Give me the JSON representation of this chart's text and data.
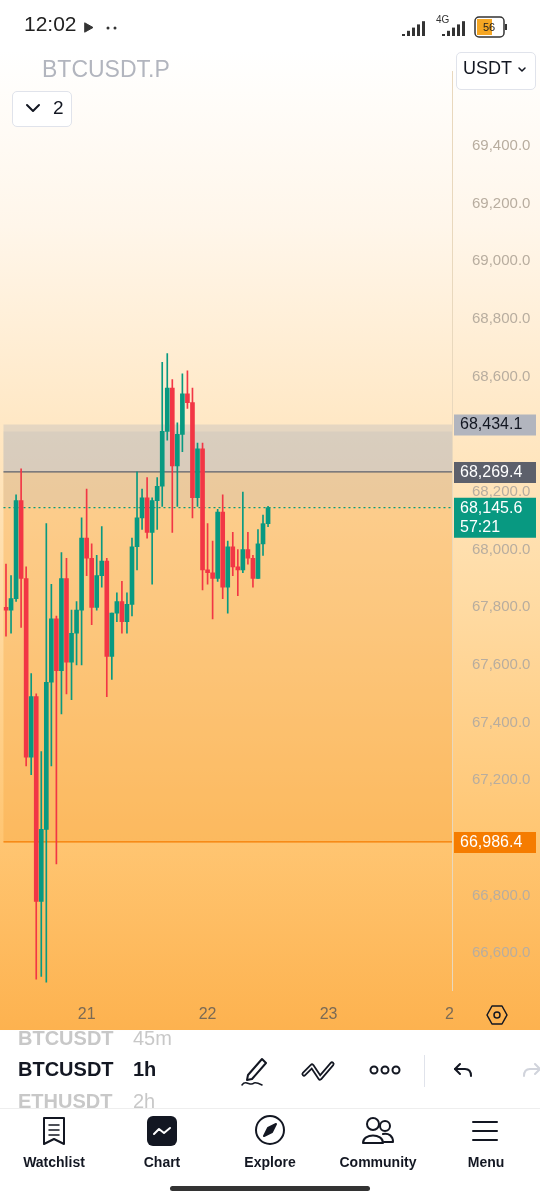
{
  "chart_data": {
    "type": "candlestick",
    "title": "BTCUSDT.P",
    "categories": [
      null,
      null,
      null,
      null,
      null,
      null,
      null,
      null,
      null,
      null,
      null,
      null,
      null,
      null,
      null,
      null,
      "21",
      null,
      null,
      null,
      null,
      null,
      null,
      null,
      null,
      null,
      null,
      null,
      null,
      null,
      null,
      null,
      null,
      null,
      null,
      null,
      null,
      null,
      null,
      null,
      "22",
      null,
      null,
      null,
      null,
      null,
      null,
      null,
      null,
      null,
      null,
      null,
      null,
      null,
      null,
      null,
      null,
      null,
      null,
      null,
      null,
      null,
      null,
      null,
      "23",
      null,
      null,
      null,
      null,
      null,
      null,
      null,
      null,
      null,
      null,
      null,
      null,
      null,
      null,
      null,
      null,
      null,
      null,
      null,
      null,
      null,
      null,
      null,
      "2"
    ],
    "ohlc": [
      [
        67800,
        67950,
        67700,
        67790
      ],
      [
        67790,
        67910,
        67710,
        67830
      ],
      [
        67830,
        68190,
        67820,
        68170
      ],
      [
        68170,
        68280,
        67730,
        67900
      ],
      [
        67900,
        67940,
        67250,
        67280
      ],
      [
        67280,
        67570,
        67220,
        67490
      ],
      [
        67490,
        67500,
        66510,
        66780
      ],
      [
        66780,
        67300,
        66520,
        67030
      ],
      [
        67030,
        68090,
        66500,
        67540
      ],
      [
        67540,
        67880,
        67250,
        67760
      ],
      [
        67760,
        67770,
        66910,
        67580
      ],
      [
        67580,
        67990,
        67430,
        67900
      ],
      [
        67900,
        67970,
        67500,
        67610
      ],
      [
        67610,
        67790,
        67480,
        67710
      ],
      [
        67710,
        67820,
        67600,
        67790
      ],
      [
        67790,
        68110,
        67600,
        68040
      ],
      [
        68040,
        68210,
        67910,
        67970
      ],
      [
        67970,
        68020,
        67740,
        67800
      ],
      [
        67800,
        67980,
        67790,
        67910
      ],
      [
        67910,
        68080,
        67870,
        67960
      ],
      [
        67960,
        67970,
        67490,
        67630
      ],
      [
        67630,
        67780,
        67550,
        67780
      ],
      [
        67780,
        67850,
        67750,
        67820
      ],
      [
        67820,
        67890,
        67710,
        67750
      ],
      [
        67750,
        67850,
        67710,
        67810
      ],
      [
        67810,
        68040,
        67770,
        68010
      ],
      [
        68010,
        68270,
        67930,
        68110
      ],
      [
        68110,
        68210,
        68070,
        68180
      ],
      [
        68180,
        68250,
        68040,
        68060
      ],
      [
        68060,
        68180,
        67880,
        68170
      ],
      [
        68170,
        68250,
        68070,
        68220
      ],
      [
        68220,
        68650,
        68150,
        68410
      ],
      [
        68410,
        68680,
        68380,
        68560
      ],
      [
        68560,
        68590,
        68060,
        68290
      ],
      [
        68290,
        68440,
        68150,
        68400
      ],
      [
        68400,
        68610,
        68340,
        68540
      ],
      [
        68540,
        68620,
        68490,
        68510
      ],
      [
        68510,
        68560,
        68110,
        68180
      ],
      [
        68180,
        68370,
        68150,
        68350
      ],
      [
        68350,
        68370,
        67860,
        67930
      ],
      [
        67930,
        68090,
        67880,
        67920
      ],
      [
        67920,
        68030,
        67760,
        67900
      ],
      [
        67900,
        68140,
        67890,
        68130
      ],
      [
        68130,
        68190,
        67830,
        67870
      ],
      [
        67870,
        68030,
        67780,
        68010
      ],
      [
        68010,
        68060,
        67910,
        67940
      ],
      [
        67940,
        68000,
        67840,
        67930
      ],
      [
        67930,
        68200,
        67920,
        68000
      ],
      [
        68000,
        68060,
        67950,
        67970
      ],
      [
        67970,
        67980,
        67870,
        67900
      ],
      [
        67900,
        68070,
        67900,
        68020
      ],
      [
        68020,
        68120,
        67980,
        68090
      ],
      [
        68090,
        68150,
        68080,
        68145.6
      ],
      null,
      null,
      null,
      null,
      null,
      null,
      null,
      null,
      null,
      null,
      null,
      null,
      null,
      null,
      null,
      null,
      null,
      null,
      null,
      null,
      null,
      null,
      null,
      null,
      null,
      null,
      null,
      null,
      null,
      null,
      null,
      null,
      null,
      null,
      null,
      null
    ],
    "colors": [
      "#f23645",
      "#089981",
      "#089981",
      "#f23645",
      "#f23645",
      "#089981",
      "#f23645",
      "#089981",
      "#089981",
      "#089981",
      "#f23645",
      "#089981",
      "#f23645",
      "#089981",
      "#089981",
      "#089981",
      "#f23645",
      "#f23645",
      "#089981",
      "#089981",
      "#f23645",
      "#089981",
      "#089981",
      "#f23645",
      "#089981",
      "#089981",
      "#089981",
      "#089981",
      "#f23645",
      "#089981",
      "#089981",
      "#089981",
      "#089981",
      "#f23645",
      "#089981",
      "#089981",
      "#f23645",
      "#f23645",
      "#089981",
      "#f23645",
      "#f23645",
      "#f23645",
      "#089981",
      "#f23645",
      "#089981",
      "#f23645",
      "#f23645",
      "#089981",
      "#f23645",
      "#f23645",
      "#089981",
      "#089981",
      "#089981",
      null,
      null,
      null,
      null,
      null,
      null,
      null,
      null,
      null,
      null,
      null,
      null,
      null,
      null,
      null,
      null,
      null,
      null,
      null,
      null,
      null,
      null,
      null,
      null,
      null,
      null,
      null,
      null,
      null,
      null,
      null,
      null,
      null,
      null,
      null,
      null
    ],
    "ylim": [
      66470,
      69660
    ],
    "yticks": [
      {
        "value": 66600,
        "label": "66,600.0"
      },
      {
        "value": 66800,
        "label": "66,800.0"
      },
      {
        "value": 67200,
        "label": "67,200.0"
      },
      {
        "value": 67400,
        "label": "67,400.0"
      },
      {
        "value": 67600,
        "label": "67,600.0"
      },
      {
        "value": 67800,
        "label": "67,800.0"
      },
      {
        "value": 68000,
        "label": "68,000.0"
      },
      {
        "value": 68200,
        "label": "68,200.0"
      },
      {
        "value": 68600,
        "label": "68,600.0"
      },
      {
        "value": 68800,
        "label": "68,800.0"
      },
      {
        "value": 69000,
        "label": "69,000.0"
      },
      {
        "value": 69200,
        "label": "69,200.0"
      },
      {
        "value": 69400,
        "label": "69,400.0"
      }
    ],
    "bands": [
      {
        "axis": "y",
        "from": 66986.4,
        "to": 68269.4,
        "color": "#f7a13a"
      },
      {
        "axis": "y",
        "from": 68150,
        "to": 68410,
        "color": "#c9c3ba"
      },
      {
        "axis": "y",
        "from": 68269.4,
        "to": 68434.1,
        "label": "68,434.1",
        "color": "#b2b5be"
      }
    ],
    "ref_lines": [
      {
        "axis": "y",
        "value": 68269.4,
        "label": "68,269.4",
        "color": "#5d606b"
      },
      {
        "axis": "y",
        "value": 66986.4,
        "label": "66,986.4",
        "color": "#f57c00"
      },
      {
        "axis": "y",
        "value": 68145.6,
        "label": "68,145.6\n57:21",
        "color": "#089981",
        "line_style": "dotted"
      }
    ],
    "annotations": [
      "12:02",
      "4G",
      "56",
      "2",
      "USDT",
      "BTCUSDT",
      "45m",
      "BTCUSDT",
      "1h",
      "ETHUSDT",
      "2h",
      "Watchlist",
      "Chart",
      "Explore",
      "Community",
      "Menu"
    ]
  }
}
